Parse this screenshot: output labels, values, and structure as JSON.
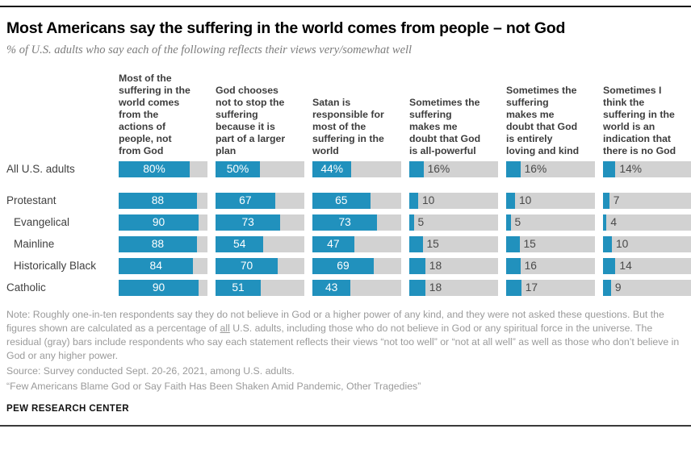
{
  "colors": {
    "bar_blue": "#2191bd",
    "bar_track": "#d2d2d2"
  },
  "title": "Most Americans say the suffering in the world comes from people – not God",
  "subtitle": "% of U.S. adults who say each of the following reflects their views very/somewhat well",
  "column_headers": [
    "Most of the\nsuffering in the\nworld comes\nfrom the\nactions of\npeople, not\nfrom God",
    "God chooses\nnot to stop the\nsuffering\nbecause it is\npart of a larger\nplan",
    "Satan is\nresponsible for\nmost of the\nsuffering in the\nworld",
    "Sometimes the\nsuffering\nmakes me\ndoubt that God\nis all-powerful",
    "Sometimes the\nsuffering\nmakes me\ndoubt that God\nis entirely\nloving and kind",
    "Sometimes I\nthink the\nsuffering in the\nworld is an\nindication that\nthere is no God"
  ],
  "chart_data": {
    "type": "bar",
    "orientation": "horizontal",
    "unit": "%",
    "xlim": [
      0,
      100
    ],
    "grid": false,
    "legend": "none",
    "categories": [
      "All U.S. adults",
      "Protestant",
      "Evangelical",
      "Mainline",
      "Historically Black",
      "Catholic"
    ],
    "series": [
      {
        "name": "Most of the suffering in the world comes from the actions of people, not from God",
        "values": [
          80,
          88,
          90,
          88,
          84,
          90
        ]
      },
      {
        "name": "God chooses not to stop the suffering because it is part of a larger plan",
        "values": [
          50,
          67,
          73,
          54,
          70,
          51
        ]
      },
      {
        "name": "Satan is responsible for most of the suffering in the world",
        "values": [
          44,
          65,
          73,
          47,
          69,
          43
        ]
      },
      {
        "name": "Sometimes the suffering makes me doubt that God is all-powerful",
        "values": [
          16,
          10,
          5,
          15,
          18,
          18
        ]
      },
      {
        "name": "Sometimes the suffering makes me doubt that God is entirely loving and kind",
        "values": [
          16,
          10,
          5,
          15,
          16,
          17
        ]
      },
      {
        "name": "Sometimes I think the suffering in the world is an indication that there is no God",
        "values": [
          14,
          7,
          4,
          10,
          14,
          9
        ]
      }
    ]
  },
  "row_display": {
    "indented_rows": [
      2,
      3,
      4
    ],
    "percent_suffix_row": 0,
    "extra_gap_after_row": 0,
    "inside_label_threshold": 25
  },
  "note": {
    "before_underline": "Note: Roughly one-in-ten respondents say they do not believe in God or a higher power of any kind, and they were not asked these questions. But the figures shown are calculated as a percentage of ",
    "underlined": "all",
    "after_underline": " U.S. adults, including those who do not believe in God or any spiritual force in the universe. The residual (gray) bars include respondents who say each statement reflects their views “not too well” or “not at all well” as well as those who don’t believe in God or any higher power."
  },
  "source": "Source: Survey conducted Sept. 20-26, 2021, among U.S. adults.",
  "quote": "“Few Americans Blame God or Say Faith Has Been Shaken Amid Pandemic, Other Tragedies”",
  "footer": "PEW RESEARCH CENTER"
}
